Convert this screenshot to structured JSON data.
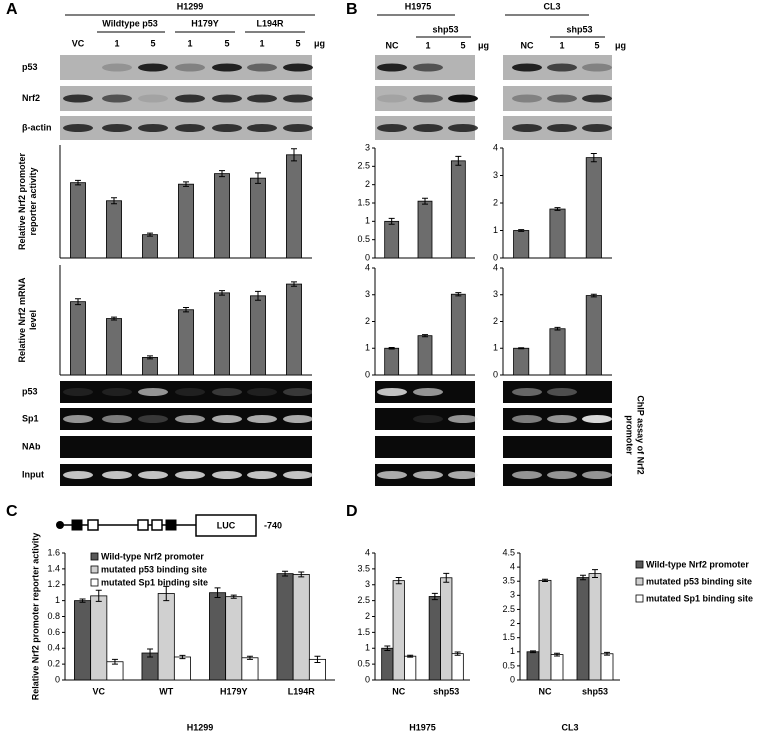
{
  "panel_labels": [
    "A",
    "B",
    "C",
    "D"
  ],
  "panel_a": {
    "cell_line": "H1299",
    "groups": [
      "Wildtype p53",
      "H179Y",
      "L194R"
    ],
    "lanes": [
      "VC",
      "1",
      "5",
      "1",
      "5",
      "1",
      "5"
    ],
    "unit": "μg",
    "blot_rows": [
      "p53",
      "Nrf2",
      "β-actin"
    ],
    "chip_rows": [
      "p53",
      "Sp1",
      "NAb",
      "Input"
    ]
  },
  "panel_b": {
    "groups": [
      {
        "cell_line": "H1975",
        "treatment": "shp53",
        "lanes": [
          "NC",
          "1",
          "5"
        ],
        "unit": "μg"
      },
      {
        "cell_line": "CL3",
        "treatment": "shp53",
        "lanes": [
          "NC",
          "1",
          "5"
        ],
        "unit": "μg"
      }
    ],
    "chip_label": [
      "ChIP assay of Nrf2",
      "promoter"
    ]
  },
  "panel_c": {
    "construct": "LUC",
    "position": "-740"
  },
  "chart_data": [
    {
      "type": "bar",
      "ylabel": [
        "Relative Nrf2 promoter",
        "reporter activity"
      ],
      "categories": [
        null,
        null,
        null,
        null,
        null,
        null,
        null
      ],
      "values": [
        1.0,
        0.76,
        0.31,
        0.98,
        1.12,
        1.06,
        1.37
      ],
      "errors": [
        0.03,
        0.04,
        0.02,
        0.03,
        0.04,
        0.07,
        0.08
      ],
      "color": "#6d6d6d",
      "ylim": [
        0,
        1.5
      ]
    },
    {
      "type": "bar",
      "ylabel": [
        "Relative Nrf2 mRNA",
        "level"
      ],
      "categories": [
        null,
        null,
        null,
        null,
        null,
        null,
        null
      ],
      "values": [
        1.0,
        0.77,
        0.24,
        0.89,
        1.12,
        1.08,
        1.24
      ],
      "errors": [
        0.04,
        0.02,
        0.02,
        0.03,
        0.03,
        0.06,
        0.03
      ],
      "color": "#6d6d6d",
      "ylim": [
        0,
        1.5
      ]
    },
    {
      "type": "bar",
      "categories": [
        null,
        null,
        null
      ],
      "values": [
        1.0,
        1.55,
        2.65
      ],
      "errors": [
        0.08,
        0.08,
        0.12
      ],
      "color": "#6d6d6d",
      "ylim": [
        0,
        3
      ],
      "yticks": [
        0,
        0.5,
        1,
        1.5,
        2,
        2.5,
        3
      ]
    },
    {
      "type": "bar",
      "categories": [
        null,
        null,
        null
      ],
      "values": [
        1.0,
        1.78,
        3.65
      ],
      "errors": [
        0.03,
        0.05,
        0.15
      ],
      "color": "#6d6d6d",
      "ylim": [
        0,
        4
      ],
      "yticks": [
        0,
        1,
        2,
        3,
        4
      ]
    },
    {
      "type": "bar",
      "categories": [
        null,
        null,
        null
      ],
      "values": [
        1.0,
        1.47,
        3.02
      ],
      "errors": [
        0.03,
        0.04,
        0.06
      ],
      "color": "#6d6d6d",
      "ylim": [
        0,
        4
      ],
      "yticks": [
        0,
        1,
        2,
        3,
        4
      ]
    },
    {
      "type": "bar",
      "categories": [
        null,
        null,
        null
      ],
      "values": [
        1.0,
        1.73,
        2.97
      ],
      "errors": [
        0.02,
        0.05,
        0.05
      ],
      "color": "#6d6d6d",
      "ylim": [
        0,
        4
      ],
      "yticks": [
        0,
        1,
        2,
        3,
        4
      ]
    },
    {
      "type": "bar",
      "ylabel": [
        "Relative Nrf2 promoter reporter activity"
      ],
      "xlabel": "H1299",
      "categories": [
        "VC",
        "WT",
        "H179Y",
        "L194R"
      ],
      "legend": "inside-top-left",
      "series": [
        {
          "name": "Wild-type Nrf2 promoter",
          "color": "#595959",
          "values": [
            1.0,
            0.34,
            1.1,
            1.34
          ],
          "errors": [
            0.02,
            0.05,
            0.06,
            0.03
          ]
        },
        {
          "name": "mutated p53 binding site",
          "color": "#d0d0d0",
          "values": [
            1.06,
            1.09,
            1.05,
            1.33
          ],
          "errors": [
            0.07,
            0.09,
            0.02,
            0.03
          ]
        },
        {
          "name": "mutated Sp1 binding site",
          "color": "#ffffff",
          "values": [
            0.23,
            0.29,
            0.28,
            0.26
          ],
          "errors": [
            0.03,
            0.02,
            0.02,
            0.04
          ]
        }
      ],
      "ylim": [
        0,
        1.6
      ],
      "yticks": [
        0,
        0.2,
        0.4,
        0.6,
        0.8,
        1,
        1.2,
        1.4,
        1.6
      ]
    },
    {
      "type": "bar",
      "xlabel": "H1975",
      "categories": [
        "NC",
        "shp53"
      ],
      "series": [
        {
          "color": "#595959",
          "values": [
            1.0,
            2.63
          ],
          "errors": [
            0.07,
            0.1
          ]
        },
        {
          "color": "#d0d0d0",
          "values": [
            3.13,
            3.22
          ],
          "errors": [
            0.1,
            0.14
          ]
        },
        {
          "color": "#ffffff",
          "values": [
            0.75,
            0.83
          ],
          "errors": [
            0.03,
            0.05
          ]
        }
      ],
      "ylim": [
        0,
        4
      ],
      "yticks": [
        0,
        0.5,
        1,
        1.5,
        2,
        2.5,
        3,
        3.5,
        4
      ]
    },
    {
      "type": "bar",
      "xlabel": "CL3",
      "categories": [
        "NC",
        "shp53"
      ],
      "legend": "right",
      "series": [
        {
          "name": "Wild-type Nrf2 promoter",
          "color": "#595959",
          "values": [
            1.0,
            3.63
          ],
          "errors": [
            0.03,
            0.08
          ]
        },
        {
          "name": "mutated p53 binding site",
          "color": "#d0d0d0",
          "values": [
            3.53,
            3.77
          ],
          "errors": [
            0.04,
            0.14
          ]
        },
        {
          "name": "mutated Sp1 binding site",
          "color": "#ffffff",
          "values": [
            0.9,
            0.93
          ],
          "errors": [
            0.05,
            0.05
          ]
        }
      ],
      "ylim": [
        0,
        4.5
      ],
      "yticks": [
        0,
        0.5,
        1,
        1.5,
        2,
        2.5,
        3,
        3.5,
        4,
        4.5
      ]
    }
  ]
}
